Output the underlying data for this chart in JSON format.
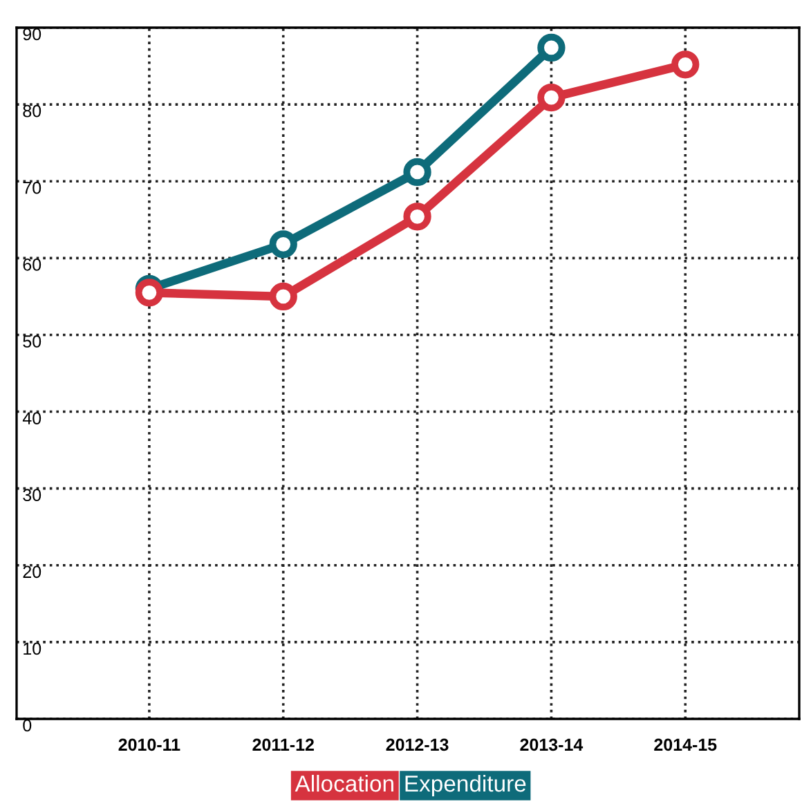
{
  "chart_data": {
    "type": "line",
    "categories": [
      "2010-11",
      "2011-12",
      "2012-13",
      "2013-14",
      "2014-15"
    ],
    "series": [
      {
        "name": "Allocation",
        "color": "#d6333f",
        "values": [
          55.5,
          55,
          65.4,
          80.9,
          85.2
        ]
      },
      {
        "name": "Expenditure",
        "color": "#0e6b7a",
        "values": [
          56,
          61.8,
          71.2,
          87.4,
          null
        ]
      }
    ],
    "ylim": [
      0,
      90
    ],
    "yticks": [
      0,
      10,
      20,
      30,
      40,
      50,
      60,
      70,
      80,
      90
    ],
    "grid": true,
    "legend": "bottom",
    "marker": "circle",
    "line_style": "solid"
  }
}
